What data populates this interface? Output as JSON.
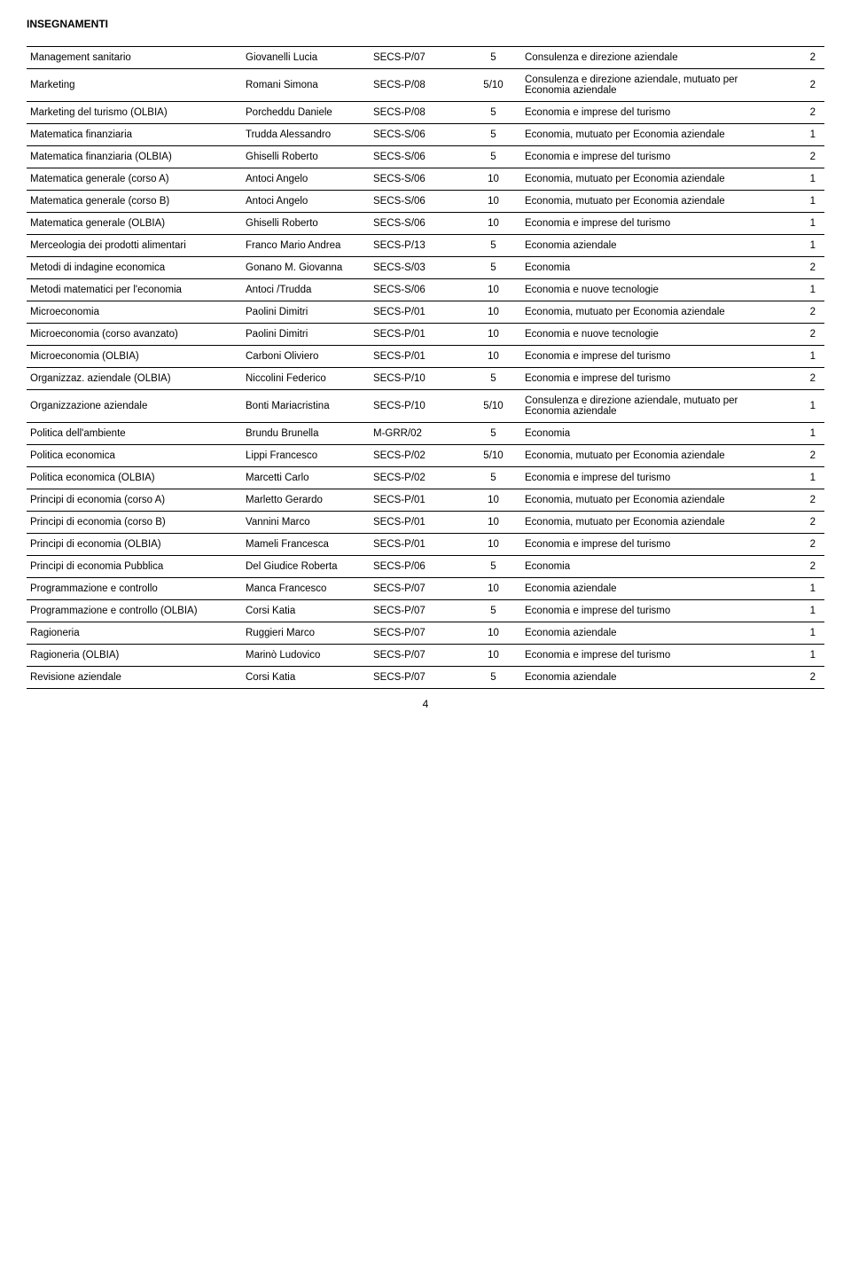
{
  "title": "INSEGNAMENTI",
  "footer": "4",
  "rows": [
    {
      "subject": "Management sanitario",
      "teacher": "Giovanelli Lucia",
      "code": "SECS-P/07",
      "credits": "5",
      "program": "Consulenza e direzione aziendale",
      "year": "2"
    },
    {
      "subject": "Marketing",
      "teacher": "Romani Simona",
      "code": "SECS-P/08",
      "credits": "5/10",
      "program": "Consulenza e direzione aziendale, mutuato per Economia aziendale",
      "year": "2"
    },
    {
      "subject": "Marketing del turismo (OLBIA)",
      "teacher": "Porcheddu Daniele",
      "code": "SECS-P/08",
      "credits": "5",
      "program": "Economia e imprese del turismo",
      "year": "2"
    },
    {
      "subject": "Matematica finanziaria",
      "teacher": "Trudda Alessandro",
      "code": "SECS-S/06",
      "credits": "5",
      "program": "Economia, mutuato per Economia aziendale",
      "year": "1"
    },
    {
      "subject": "Matematica finanziaria (OLBIA)",
      "teacher": "Ghiselli Roberto",
      "code": "SECS-S/06",
      "credits": "5",
      "program": "Economia e imprese del turismo",
      "year": "2"
    },
    {
      "subject": "Matematica generale (corso A)",
      "teacher": "Antoci Angelo",
      "code": "SECS-S/06",
      "credits": "10",
      "program": "Economia, mutuato per Economia aziendale",
      "year": "1"
    },
    {
      "subject": "Matematica generale (corso B)",
      "teacher": "Antoci Angelo",
      "code": "SECS-S/06",
      "credits": "10",
      "program": "Economia, mutuato per Economia aziendale",
      "year": "1"
    },
    {
      "subject": "Matematica generale (OLBIA)",
      "teacher": "Ghiselli Roberto",
      "code": "SECS-S/06",
      "credits": "10",
      "program": "Economia e imprese del turismo",
      "year": "1"
    },
    {
      "subject": "Merceologia dei prodotti alimentari",
      "teacher": "Franco Mario Andrea",
      "code": "SECS-P/13",
      "credits": "5",
      "program": "Economia aziendale",
      "year": "1"
    },
    {
      "subject": "Metodi di indagine economica",
      "teacher": "Gonano M. Giovanna",
      "code": "SECS-S/03",
      "credits": "5",
      "program": "Economia",
      "year": "2"
    },
    {
      "subject": "Metodi matematici per l'economia",
      "teacher": "Antoci /Trudda",
      "code": "SECS-S/06",
      "credits": "10",
      "program": "Economia e nuove tecnologie",
      "year": "1"
    },
    {
      "subject": "Microeconomia",
      "teacher": "Paolini Dimitri",
      "code": "SECS-P/01",
      "credits": "10",
      "program": "Economia, mutuato per Economia aziendale",
      "year": "2"
    },
    {
      "subject": "Microeconomia (corso avanzato)",
      "teacher": "Paolini Dimitri",
      "code": "SECS-P/01",
      "credits": "10",
      "program": "Economia e nuove tecnologie",
      "year": "2"
    },
    {
      "subject": "Microeconomia (OLBIA)",
      "teacher": "Carboni Oliviero",
      "code": "SECS-P/01",
      "credits": "10",
      "program": "Economia e imprese del turismo",
      "year": "1"
    },
    {
      "subject": "Organizzaz. aziendale (OLBIA)",
      "teacher": "Niccolini Federico",
      "code": "SECS-P/10",
      "credits": "5",
      "program": "Economia e imprese del turismo",
      "year": "2"
    },
    {
      "subject": "Organizzazione aziendale",
      "teacher": "Bonti Mariacristina",
      "code": "SECS-P/10",
      "credits": "5/10",
      "program": "Consulenza e direzione aziendale, mutuato per Economia aziendale",
      "year": "1"
    },
    {
      "subject": "Politica dell'ambiente",
      "teacher": "Brundu Brunella",
      "code": "M-GRR/02",
      "credits": "5",
      "program": "Economia",
      "year": "1"
    },
    {
      "subject": "Politica economica",
      "teacher": "Lippi Francesco",
      "code": "SECS-P/02",
      "credits": "5/10",
      "program": "Economia, mutuato per Economia aziendale",
      "year": "2"
    },
    {
      "subject": "Politica economica (OLBIA)",
      "teacher": "Marcetti Carlo",
      "code": "SECS-P/02",
      "credits": "5",
      "program": "Economia e imprese del turismo",
      "year": "1"
    },
    {
      "subject": "Principi di economia (corso A)",
      "teacher": "Marletto Gerardo",
      "code": "SECS-P/01",
      "credits": "10",
      "program": "Economia, mutuato per Economia aziendale",
      "year": "2"
    },
    {
      "subject": "Principi di economia (corso B)",
      "teacher": "Vannini Marco",
      "code": "SECS-P/01",
      "credits": "10",
      "program": "Economia, mutuato per Economia aziendale",
      "year": "2"
    },
    {
      "subject": "Principi di economia (OLBIA)",
      "teacher": "Mameli Francesca",
      "code": "SECS-P/01",
      "credits": "10",
      "program": "Economia e imprese del turismo",
      "year": "2"
    },
    {
      "subject": "Principi di economia Pubblica",
      "teacher": "Del Giudice Roberta",
      "code": "SECS-P/06",
      "credits": "5",
      "program": "Economia",
      "year": "2"
    },
    {
      "subject": "Programmazione e controllo",
      "teacher": "Manca Francesco",
      "code": "SECS-P/07",
      "credits": "10",
      "program": "Economia aziendale",
      "year": "1"
    },
    {
      "subject": "Programmazione e controllo (OLBIA)",
      "teacher": "Corsi Katia",
      "code": "SECS-P/07",
      "credits": "5",
      "program": "Economia e imprese del turismo",
      "year": "1"
    },
    {
      "subject": "Ragioneria",
      "teacher": "Ruggieri Marco",
      "code": "SECS-P/07",
      "credits": "10",
      "program": "Economia aziendale",
      "year": "1"
    },
    {
      "subject": "Ragioneria (OLBIA)",
      "teacher": "Marinò Ludovico",
      "code": "SECS-P/07",
      "credits": "10",
      "program": "Economia e imprese del turismo",
      "year": "1"
    },
    {
      "subject": "Revisione aziendale",
      "teacher": "Corsi Katia",
      "code": "SECS-P/07",
      "credits": "5",
      "program": "Economia aziendale",
      "year": "2"
    }
  ]
}
